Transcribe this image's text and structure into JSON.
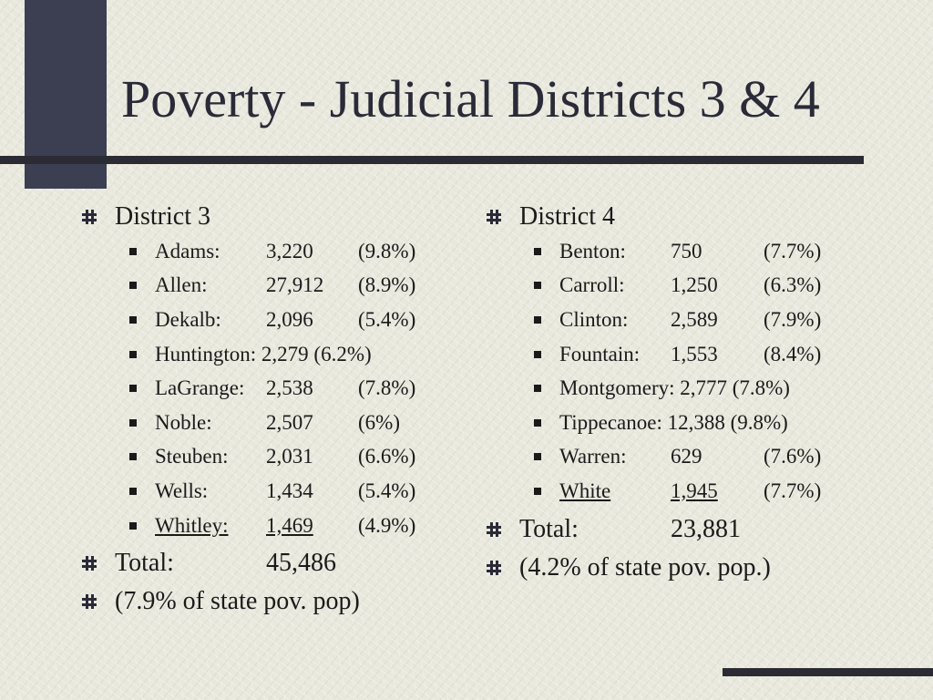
{
  "slide": {
    "title": "Poverty - Judicial Districts 3 & 4"
  },
  "district3": {
    "heading": "District 3",
    "rows": [
      {
        "name": "Adams:",
        "count": "3,220",
        "pct": "(9.8%)"
      },
      {
        "name": "Allen:",
        "count": "27,912",
        "pct": "(8.9%)"
      },
      {
        "name": "Dekalb:",
        "count": "2,096",
        "pct": "(5.4%)"
      },
      {
        "text": "Huntington: 2,279 (6.2%)"
      },
      {
        "name": "LaGrange:",
        "count": "2,538",
        "pct": "(7.8%)"
      },
      {
        "name": "Noble:",
        "count": "2,507",
        "pct": "(6%)"
      },
      {
        "name": "Steuben:",
        "count": "2,031",
        "pct": "(6.6%)"
      },
      {
        "name": "Wells:",
        "count": "1,434",
        "pct": "(5.4%)"
      },
      {
        "name": "Whitley:",
        "count": "1,469",
        "pct": "(4.9%)"
      }
    ],
    "total_label": "Total:",
    "total_value": "45,486",
    "share": "(7.9% of state pov. pop)"
  },
  "district4": {
    "heading": "District 4",
    "rows": [
      {
        "name": "Benton:",
        "count": "750",
        "pct": "(7.7%)"
      },
      {
        "name": "Carroll:",
        "count": "1,250",
        "pct": "(6.3%)"
      },
      {
        "name": "Clinton:",
        "count": "2,589",
        "pct": "(7.9%)"
      },
      {
        "name": "Fountain:",
        "count": "1,553",
        "pct": "(8.4%)"
      },
      {
        "text": "Montgomery: 2,777 (7.8%)"
      },
      {
        "text": "Tippecanoe: 12,388 (9.8%)"
      },
      {
        "name": "Warren:",
        "count": "629",
        "pct": "(7.6%)"
      },
      {
        "name": "White",
        "count": "1,945",
        "pct": "(7.7%)"
      }
    ],
    "total_label": "Total:",
    "total_value": "23,881",
    "share": "(4.2% of state pov. pop.)"
  }
}
